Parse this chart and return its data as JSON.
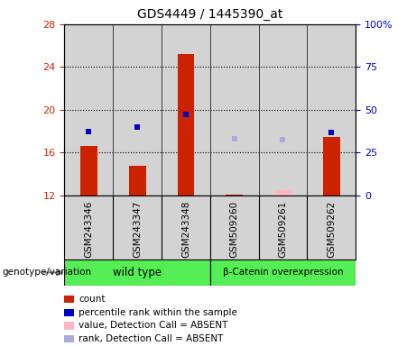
{
  "title": "GDS4449 / 1445390_at",
  "samples": [
    "GSM243346",
    "GSM243347",
    "GSM243348",
    "GSM509260",
    "GSM509261",
    "GSM509262"
  ],
  "groups": [
    {
      "label": "wild type",
      "color": "#55DD55",
      "span": [
        0,
        3
      ]
    },
    {
      "label": "β-Catenin overexpression",
      "color": "#55DD55",
      "span": [
        3,
        6
      ]
    }
  ],
  "bar_values": [
    16.6,
    14.8,
    25.2,
    12.05,
    12.5,
    17.5
  ],
  "bar_present": [
    true,
    true,
    true,
    false,
    false,
    true
  ],
  "bar_absent": [
    false,
    false,
    false,
    false,
    true,
    false
  ],
  "bar_absent_value": [
    null,
    null,
    null,
    null,
    12.5,
    null
  ],
  "blue_squares_present": [
    18.0,
    18.4,
    19.6,
    null,
    null,
    17.9
  ],
  "blue_squares_absent": [
    null,
    null,
    null,
    17.3,
    17.2,
    null
  ],
  "absent_bar_line": [
    false,
    false,
    false,
    true,
    false,
    false
  ],
  "absent_bar_line_value": [
    null,
    null,
    null,
    12.05,
    null,
    null
  ],
  "ylim_left": [
    12,
    28
  ],
  "ylim_right": [
    0,
    100
  ],
  "yticks_left": [
    12,
    16,
    20,
    24,
    28
  ],
  "yticks_right": [
    0,
    25,
    50,
    75,
    100
  ],
  "ytick_labels_right": [
    "0",
    "25",
    "50",
    "75",
    "100%"
  ],
  "bar_color_present": "#CC2200",
  "bar_color_absent": "#FFB6C1",
  "blue_color_present": "#0000CC",
  "blue_color_absent": "#AAAADD",
  "bar_width": 0.35,
  "background_color": "#ffffff",
  "sample_bg_color": "#D3D3D3",
  "group_color": "#55EE55",
  "dotted_lines": [
    16,
    20,
    24
  ],
  "legend_items": [
    {
      "label": "count",
      "color": "#CC2200"
    },
    {
      "label": "percentile rank within the sample",
      "color": "#0000CC"
    },
    {
      "label": "value, Detection Call = ABSENT",
      "color": "#FFB6C1"
    },
    {
      "label": "rank, Detection Call = ABSENT",
      "color": "#AAAADD"
    }
  ]
}
